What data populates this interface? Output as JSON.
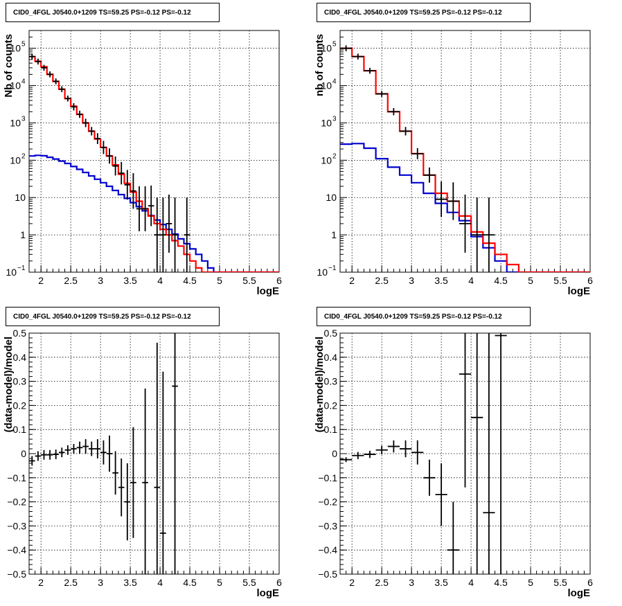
{
  "chart_data": [
    {
      "type": "histogram",
      "scale_y": "log",
      "title": "CID0_4FGL J0540.0+1209 TS=59.25 PS=-0.12 PS=-0.12",
      "xlabel": "logE",
      "ylabel": "Nb of counts",
      "xlim": [
        1.8,
        6.0
      ],
      "ylim": [
        0.1,
        300000
      ],
      "x_ticks": [
        "2",
        "2.5",
        "3",
        "3.5",
        "4",
        "4.5",
        "5",
        "5.5",
        "6"
      ],
      "y_ticks": [
        {
          "v": 0.1,
          "base": "10",
          "exp": "−1"
        },
        {
          "v": 1,
          "label": "1"
        },
        {
          "v": 10,
          "label": "10"
        },
        {
          "v": 100,
          "base": "10",
          "exp": "2"
        },
        {
          "v": 1000,
          "base": "10",
          "exp": "3"
        },
        {
          "v": 10000,
          "base": "10",
          "exp": "4"
        },
        {
          "v": 100000,
          "base": "10",
          "exp": "5"
        }
      ],
      "grid": true,
      "colors": {
        "total_model": "#ff0000",
        "source_model": "#0000cc",
        "data": "#000000"
      },
      "bin_edges": [
        1.8,
        1.9,
        2.0,
        2.1,
        2.2,
        2.3,
        2.4,
        2.5,
        2.6,
        2.7,
        2.8,
        2.9,
        3.0,
        3.1,
        3.2,
        3.3,
        3.4,
        3.5,
        3.6,
        3.7,
        3.8,
        3.9,
        4.0,
        4.1,
        4.2,
        4.3,
        4.4,
        4.5,
        4.6,
        4.7,
        4.8,
        4.9,
        5.0,
        5.1,
        5.2,
        5.3,
        5.4,
        5.5,
        5.6,
        5.7,
        5.8,
        5.9,
        6.0
      ],
      "series": [
        {
          "role": "total_model",
          "values": [
            60000,
            45000,
            32000,
            20000,
            13000,
            8000,
            4500,
            2800,
            1700,
            1000,
            600,
            370,
            220,
            130,
            75,
            42,
            24,
            14,
            8,
            5,
            3.2,
            2,
            1.4,
            1,
            0.7,
            0.5,
            0.3,
            0.2,
            0.13,
            0.1,
            0.1,
            0.1,
            0.1,
            0.1,
            0.1,
            0.1,
            0.1,
            0.1,
            0.1,
            0.1,
            0.1,
            0.1
          ]
        },
        {
          "role": "source_model",
          "values": [
            130,
            135,
            132,
            120,
            108,
            95,
            82,
            68,
            57,
            47,
            38,
            31,
            25,
            20,
            15.5,
            12,
            9.5,
            7.3,
            5.7,
            4.4,
            3.3,
            2.5,
            1.9,
            1.4,
            1.05,
            0.78,
            0.58,
            0.42,
            0.3,
            0.2,
            0.13,
            0.1,
            0.1,
            0.1,
            0.1,
            0.1,
            0.1,
            0.1,
            0.1,
            0.1,
            0.1,
            0.1
          ]
        },
        {
          "role": "data",
          "points": [
            [
              1.85,
              60000,
              1.2
            ],
            [
              1.95,
              44000,
              1.2
            ],
            [
              2.05,
              30000,
              1.2
            ],
            [
              2.15,
              20000,
              1.2
            ],
            [
              2.25,
              13000,
              1.2
            ],
            [
              2.35,
              8000,
              1.2
            ],
            [
              2.45,
              4500,
              1.2
            ],
            [
              2.55,
              2700,
              1.25
            ],
            [
              2.65,
              1700,
              1.25
            ],
            [
              2.75,
              1000,
              1.3
            ],
            [
              2.85,
              600,
              1.3
            ],
            [
              2.95,
              380,
              1.4
            ],
            [
              3.05,
              220,
              1.5
            ],
            [
              3.15,
              130,
              1.6
            ],
            [
              3.25,
              70,
              1.8
            ],
            [
              3.35,
              45,
              2.0
            ],
            [
              3.45,
              22,
              2.5
            ],
            [
              3.55,
              15,
              3.0
            ],
            [
              3.65,
              5,
              4.0
            ],
            [
              3.75,
              5,
              4.0
            ],
            [
              3.85,
              6,
              3.5
            ],
            [
              3.95,
              1,
              10
            ],
            [
              4.05,
              1,
              10
            ],
            [
              4.15,
              2,
              6
            ],
            [
              4.25,
              1,
              10
            ],
            [
              4.45,
              1,
              10
            ]
          ]
        }
      ]
    },
    {
      "type": "histogram",
      "scale_y": "log",
      "title": "CID0_4FGL J0540.0+1209 TS=59.25 PS=-0.12 PS=-0.12",
      "xlabel": "logE",
      "ylabel": "nb of counts",
      "xlim": [
        1.8,
        6.0
      ],
      "ylim": [
        0.1,
        300000
      ],
      "x_ticks": [
        "2",
        "2.5",
        "3",
        "3.5",
        "4",
        "4.5",
        "5",
        "5.5",
        "6"
      ],
      "y_ticks": [
        {
          "v": 0.1,
          "base": "10",
          "exp": "−1"
        },
        {
          "v": 1,
          "label": "1"
        },
        {
          "v": 10,
          "label": "10"
        },
        {
          "v": 100,
          "base": "10",
          "exp": "2"
        },
        {
          "v": 1000,
          "base": "10",
          "exp": "3"
        },
        {
          "v": 10000,
          "base": "10",
          "exp": "4"
        },
        {
          "v": 100000,
          "base": "10",
          "exp": "5"
        }
      ],
      "grid": true,
      "colors": {
        "total_model": "#ff0000",
        "source_model": "#0000cc",
        "data": "#000000"
      },
      "bin_edges": [
        1.8,
        2.0,
        2.2,
        2.4,
        2.6,
        2.8,
        3.0,
        3.2,
        3.4,
        3.6,
        3.8,
        4.0,
        4.2,
        4.4,
        4.6,
        4.8,
        5.0,
        5.2,
        5.4,
        5.6,
        5.8,
        6.0
      ],
      "series": [
        {
          "role": "total_model",
          "values": [
            100000,
            60000,
            25000,
            6000,
            2000,
            600,
            150,
            40,
            13,
            8,
            3.2,
            1.2,
            0.6,
            0.3,
            0.16,
            0.1,
            0.1,
            0.1,
            0.1,
            0.1,
            0.1
          ]
        },
        {
          "role": "source_model",
          "values": [
            270,
            280,
            210,
            110,
            65,
            40,
            25,
            13,
            7,
            4,
            2.4,
            0.9,
            0.45,
            0.2,
            0.1,
            0.1,
            0.1,
            0.1,
            0.1,
            0.1,
            0.1
          ]
        },
        {
          "role": "data",
          "points": [
            [
              1.9,
              100000,
              1.2
            ],
            [
              2.1,
              60000,
              1.2
            ],
            [
              2.3,
              25000,
              1.2
            ],
            [
              2.5,
              6000,
              1.2
            ],
            [
              2.7,
              2000,
              1.25
            ],
            [
              2.9,
              600,
              1.3
            ],
            [
              3.1,
              150,
              1.4
            ],
            [
              3.3,
              40,
              1.6
            ],
            [
              3.5,
              9,
              3.0
            ],
            [
              3.7,
              8,
              3.2
            ],
            [
              3.9,
              2,
              6
            ],
            [
              4.1,
              1,
              10
            ],
            [
              4.3,
              1,
              10
            ]
          ]
        }
      ]
    },
    {
      "type": "scatter_errorbars",
      "title": "CID0_4FGL J0540.0+1209 TS=59.25 PS=-0.12 PS=-0.12",
      "xlabel": "logE",
      "ylabel": "(data-model)/model",
      "xlim": [
        1.8,
        6.0
      ],
      "ylim": [
        -0.5,
        0.5
      ],
      "x_ticks": [
        "2",
        "2.5",
        "3",
        "3.5",
        "4",
        "4.5",
        "5",
        "5.5",
        "6"
      ],
      "y_ticks": [
        "−0.5",
        "−0.4",
        "−0.3",
        "−0.2",
        "−0.1",
        "0",
        "0.1",
        "0.2",
        "0.3",
        "0.4",
        "0.5"
      ],
      "grid": true,
      "points": [
        [
          1.85,
          -0.03,
          0.02
        ],
        [
          1.95,
          -0.01,
          0.02
        ],
        [
          2.05,
          -0.005,
          0.02
        ],
        [
          2.15,
          -0.005,
          0.02
        ],
        [
          2.25,
          -0.003,
          0.02
        ],
        [
          2.35,
          0.005,
          0.02
        ],
        [
          2.45,
          0.015,
          0.02
        ],
        [
          2.55,
          0.02,
          0.02
        ],
        [
          2.65,
          0.025,
          0.025
        ],
        [
          2.75,
          0.03,
          0.03
        ],
        [
          2.85,
          0.02,
          0.03
        ],
        [
          2.95,
          0.02,
          0.04
        ],
        [
          3.05,
          0.005,
          0.05
        ],
        [
          3.15,
          0.0,
          0.075
        ],
        [
          3.25,
          -0.08,
          0.09
        ],
        [
          3.35,
          -0.14,
          0.12
        ],
        [
          3.45,
          -0.2,
          0.16
        ],
        [
          3.55,
          -0.12,
          0.23
        ],
        [
          3.75,
          -0.12,
          0.39
        ],
        [
          3.95,
          -0.14,
          0.6
        ],
        [
          4.05,
          -0.33,
          0.67
        ],
        [
          4.25,
          0.28,
          0.9
        ]
      ]
    },
    {
      "type": "scatter_errorbars",
      "title": "CID0_4FGL J0540.0+1209 TS=59.25 PS=-0.12 PS=-0.12",
      "xlabel": "logE",
      "ylabel": "(data-model)/model",
      "xlim": [
        1.8,
        6.0
      ],
      "ylim": [
        -0.5,
        0.5
      ],
      "x_ticks": [
        "2",
        "2.5",
        "3",
        "3.5",
        "4",
        "4.5",
        "5",
        "5.5",
        "6"
      ],
      "y_ticks": [
        "−0.5",
        "−0.4",
        "−0.3",
        "−0.2",
        "−0.1",
        "0",
        "0.1",
        "0.2",
        "0.3",
        "0.4",
        "0.5"
      ],
      "grid": true,
      "points": [
        [
          1.9,
          -0.025,
          0.01
        ],
        [
          2.1,
          -0.008,
          0.015
        ],
        [
          2.3,
          -0.003,
          0.015
        ],
        [
          2.5,
          0.015,
          0.018
        ],
        [
          2.7,
          0.03,
          0.025
        ],
        [
          2.9,
          0.02,
          0.035
        ],
        [
          3.1,
          0.005,
          0.05
        ],
        [
          3.3,
          -0.1,
          0.075
        ],
        [
          3.5,
          -0.17,
          0.13
        ],
        [
          3.7,
          -0.4,
          0.2
        ],
        [
          3.9,
          0.33,
          0.47
        ],
        [
          4.1,
          0.15,
          0.75
        ],
        [
          4.3,
          -0.245,
          1.0
        ],
        [
          4.5,
          0.49,
          1.0
        ]
      ]
    }
  ]
}
